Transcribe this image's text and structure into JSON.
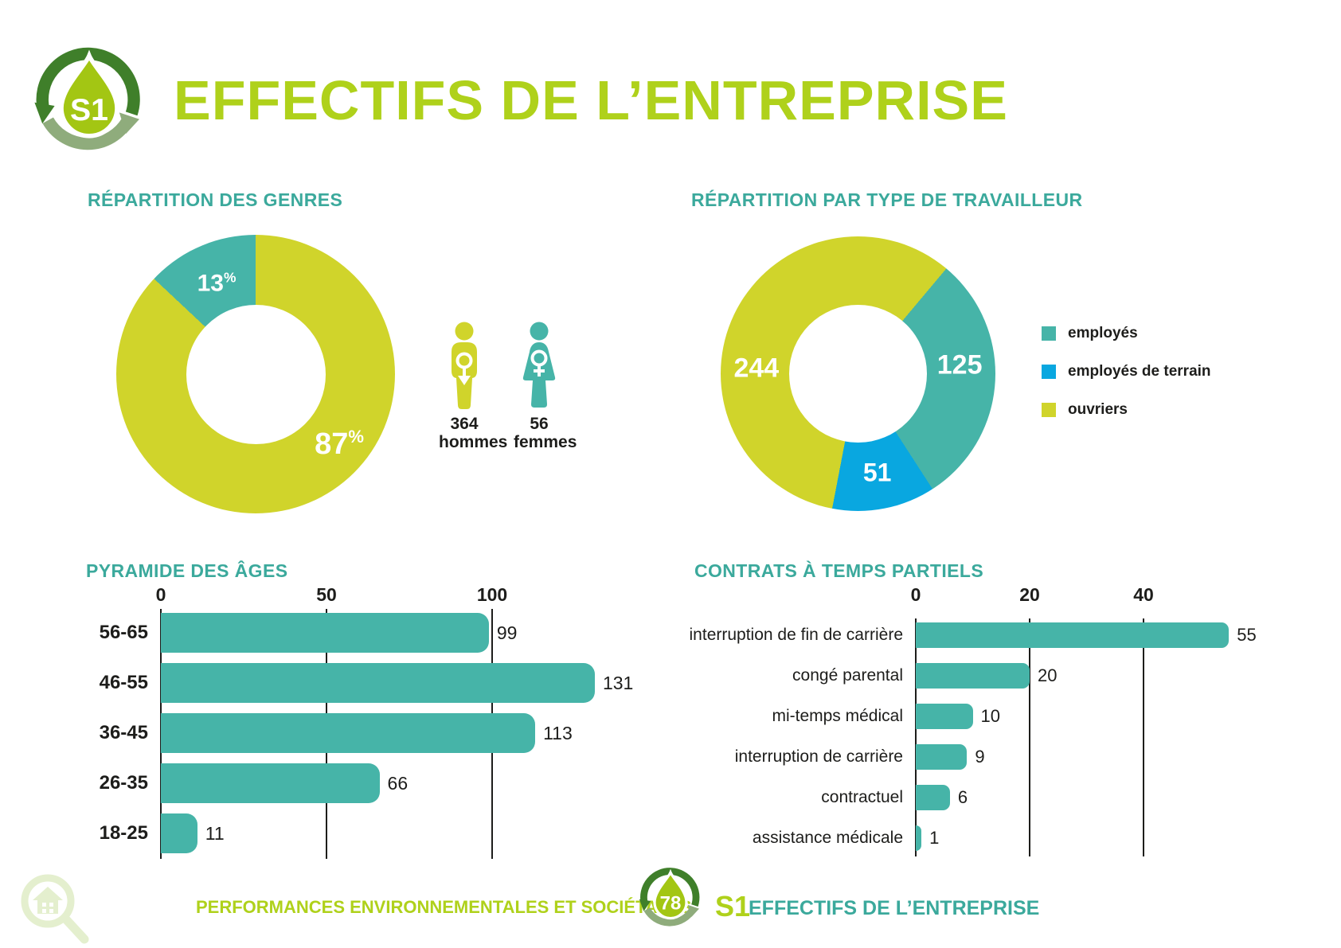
{
  "page": {
    "header": {
      "badge": "S1",
      "title": "EFFECTIFS DE L’ENTREPRISE"
    },
    "footer": {
      "report_title": "PERFORMANCES ENVIRONNEMENTALES ET SOCIÉTALES",
      "page_number": "78",
      "section_code": "S1",
      "section_title": "EFFECTIFS DE L’ENTREPRISE"
    }
  },
  "colors": {
    "teal": "#46B4A8",
    "yellow_green": "#D0D42B",
    "blue": "#09A7E0",
    "heading_green": "#AFD11B",
    "heading_teal": "#3BA99C",
    "logo_dark_green": "#3F7F2A",
    "logo_sage_green": "#8FAC7C",
    "logo_drop_green": "#A3C613",
    "text_black": "#1D1D1B",
    "watermark_green": "#E4EFCE"
  },
  "chart_data": [
    {
      "id": "repartition-genres",
      "type": "pie",
      "donut": true,
      "title": "RÉPARTITION DES GENRES",
      "segments": [
        {
          "label": "hommes",
          "value": 87,
          "display": "87",
          "unit": "%",
          "color": "#D0D42B"
        },
        {
          "label": "femmes",
          "value": 13,
          "display": "13",
          "unit": "%",
          "color": "#46B4A8"
        }
      ],
      "annotations": [
        {
          "icon": "male",
          "count": "364",
          "label": "hommes"
        },
        {
          "icon": "female",
          "count": "56",
          "label": "femmes"
        }
      ]
    },
    {
      "id": "repartition-type-travailleur",
      "type": "pie",
      "donut": true,
      "title": "RÉPARTITION PAR TYPE DE TRAVAILLEUR",
      "legend_position": "right",
      "segments": [
        {
          "label": "employés",
          "value": 125,
          "color": "#46B4A8"
        },
        {
          "label": "employés de terrain",
          "value": 51,
          "color": "#09A7E0"
        },
        {
          "label": "ouvriers",
          "value": 244,
          "color": "#D0D42B"
        }
      ]
    },
    {
      "id": "pyramide-ages",
      "type": "bar",
      "orientation": "horizontal",
      "title": "PYRAMIDE DES ÂGES",
      "categories": [
        "56-65",
        "46-55",
        "36-45",
        "26-35",
        "18-25"
      ],
      "values": [
        99,
        131,
        113,
        66,
        11
      ],
      "xticks": [
        0,
        50,
        100
      ],
      "xlim": [
        0,
        145
      ],
      "grid": true,
      "bar_color": "#46B4A8"
    },
    {
      "id": "contrats-temps-partiels",
      "type": "bar",
      "orientation": "horizontal",
      "title": "CONTRATS À TEMPS PARTIELS",
      "categories": [
        "interruption de fin de carrière",
        "congé parental",
        "mi-temps médical",
        "interruption de carrière",
        "contractuel",
        "assistance médicale"
      ],
      "values": [
        55,
        20,
        10,
        9,
        6,
        1
      ],
      "xticks": [
        0,
        20,
        40
      ],
      "xlim": [
        0,
        60
      ],
      "grid": true,
      "bar_color": "#46B4A8"
    }
  ]
}
